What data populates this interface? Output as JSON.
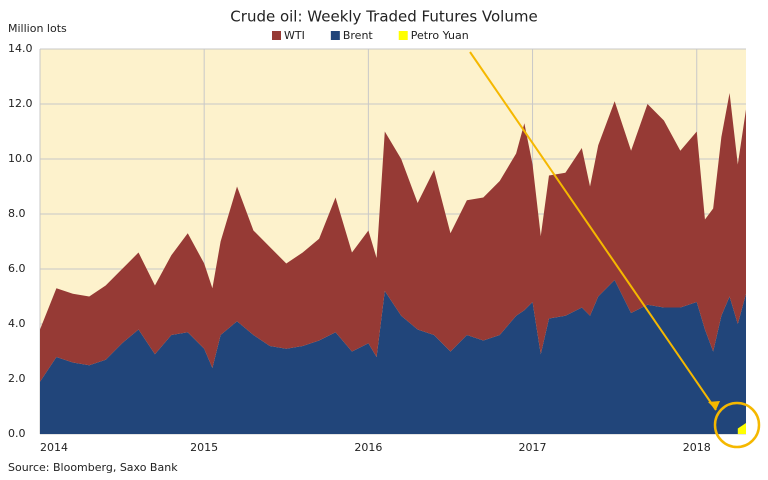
{
  "chart_data": {
    "type": "area",
    "title": "Crude oil: Weekly Traded Futures Volume",
    "ylabel": "Million lots",
    "source": "Source: Bloomberg, Saxo Bank",
    "stacked": true,
    "grid": true,
    "background": "#fdf2cc",
    "x": [
      2014.0,
      2014.1,
      2014.2,
      2014.3,
      2014.4,
      2014.5,
      2014.6,
      2014.7,
      2014.8,
      2014.9,
      2015.0,
      2015.05,
      2015.1,
      2015.2,
      2015.3,
      2015.4,
      2015.5,
      2015.6,
      2015.7,
      2015.8,
      2015.9,
      2016.0,
      2016.05,
      2016.1,
      2016.2,
      2016.3,
      2016.4,
      2016.5,
      2016.6,
      2016.7,
      2016.8,
      2016.9,
      2016.95,
      2017.0,
      2017.05,
      2017.1,
      2017.2,
      2017.3,
      2017.35,
      2017.4,
      2017.5,
      2017.6,
      2017.7,
      2017.8,
      2017.9,
      2018.0,
      2018.05,
      2018.1,
      2018.15,
      2018.2,
      2018.25,
      2018.3
    ],
    "series": [
      {
        "name": "WTI",
        "color": "#963a35",
        "values": [
          1.9,
          2.5,
          2.5,
          2.5,
          2.7,
          2.7,
          2.8,
          2.5,
          2.9,
          3.6,
          3.1,
          2.9,
          3.4,
          4.9,
          3.8,
          3.6,
          3.1,
          3.4,
          3.7,
          4.9,
          3.6,
          4.1,
          3.6,
          5.8,
          5.7,
          4.6,
          6.0,
          4.3,
          4.9,
          5.2,
          5.6,
          5.9,
          6.8,
          5.0,
          4.3,
          5.2,
          5.2,
          5.8,
          4.7,
          5.5,
          6.5,
          5.9,
          7.3,
          6.8,
          5.7,
          6.2,
          4.0,
          5.2,
          6.5,
          7.4,
          5.8,
          6.7
        ]
      },
      {
        "name": "Brent",
        "color": "#21457a",
        "values": [
          1.9,
          2.8,
          2.6,
          2.5,
          2.7,
          3.3,
          3.8,
          2.9,
          3.6,
          3.7,
          3.1,
          2.4,
          3.6,
          4.1,
          3.6,
          3.2,
          3.1,
          3.2,
          3.4,
          3.7,
          3.0,
          3.3,
          2.8,
          5.2,
          4.3,
          3.8,
          3.6,
          3.0,
          3.6,
          3.4,
          3.6,
          4.3,
          4.5,
          4.8,
          2.9,
          4.2,
          4.3,
          4.6,
          4.3,
          5.0,
          5.6,
          4.4,
          4.7,
          4.6,
          4.6,
          4.8,
          3.8,
          3.0,
          4.3,
          5.0,
          4.0,
          5.1
        ]
      },
      {
        "name": "Petro Yuan",
        "color": "#ffff00",
        "values": [
          null,
          null,
          null,
          null,
          null,
          null,
          null,
          null,
          null,
          null,
          null,
          null,
          null,
          null,
          null,
          null,
          null,
          null,
          null,
          null,
          null,
          null,
          null,
          null,
          null,
          null,
          null,
          null,
          null,
          null,
          null,
          null,
          null,
          null,
          null,
          null,
          null,
          null,
          null,
          null,
          null,
          null,
          null,
          null,
          null,
          null,
          null,
          null,
          null,
          null,
          0.2,
          0.4
        ]
      }
    ],
    "xlim": [
      2014,
      2018.3
    ],
    "xticks": [
      2014,
      2015,
      2016,
      2017,
      2018
    ],
    "ylim": [
      0,
      14
    ],
    "yticks": [
      {
        "value": 0,
        "label": "0.0"
      },
      {
        "value": 2,
        "label": "2.0"
      },
      {
        "value": 4,
        "label": "4.0"
      },
      {
        "value": 6,
        "label": "6.0"
      },
      {
        "value": 8,
        "label": "8.0"
      },
      {
        "value": 10,
        "label": "10.0"
      },
      {
        "value": 12,
        "label": "12.0"
      },
      {
        "value": 14,
        "label": "14.0"
      }
    ]
  }
}
